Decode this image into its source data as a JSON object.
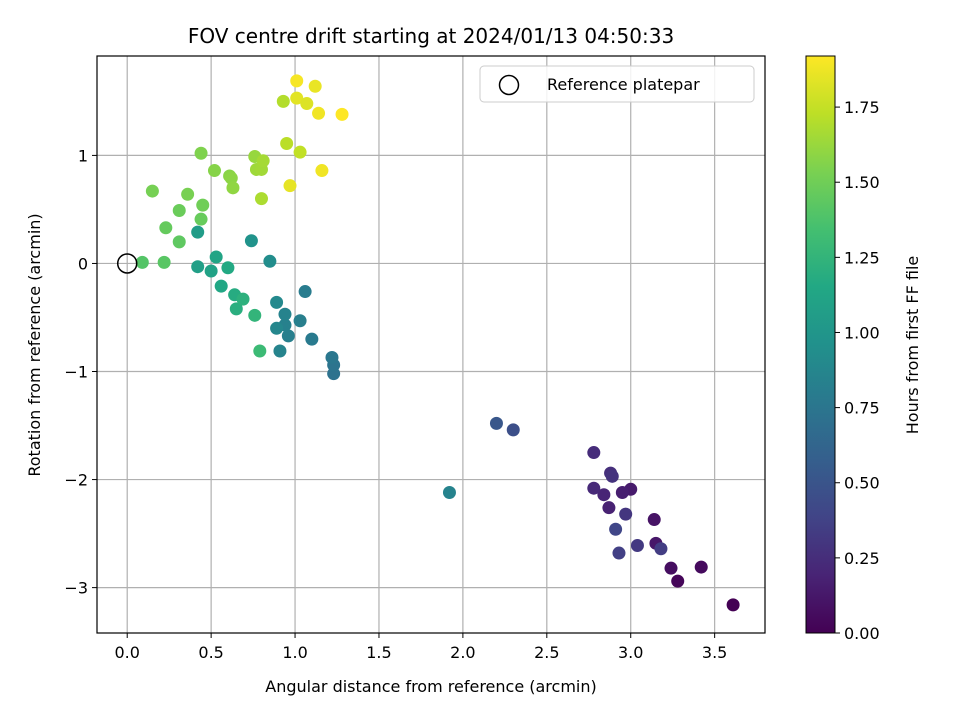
{
  "chart_data": {
    "type": "scatter",
    "title": "FOV centre drift starting at 2024/01/13 04:50:33",
    "xlabel": "Angular distance from reference (arcmin)",
    "ylabel": "Rotation from reference (arcmin)",
    "xlim": [
      -0.18,
      3.8
    ],
    "ylim": [
      -3.42,
      1.92
    ],
    "xticks": [
      "0.0",
      "0.5",
      "1.0",
      "1.5",
      "2.0",
      "2.5",
      "3.0",
      "3.5"
    ],
    "xtick_values": [
      0,
      0.5,
      1.0,
      1.5,
      2.0,
      2.5,
      3.0,
      3.5
    ],
    "yticks": [
      "−3",
      "−2",
      "−1",
      "0",
      "1"
    ],
    "ytick_values": [
      -3,
      -2,
      -1,
      0,
      1
    ],
    "grid": true,
    "legend": {
      "position": "top-right",
      "entries": [
        "Reference platepar"
      ]
    },
    "reference_point": {
      "x": 0.0,
      "y": 0.0,
      "marker": "open-circle"
    },
    "colorbar": {
      "label": "Hours from first FF file",
      "colormap": "viridis",
      "range": [
        0.0,
        1.92
      ],
      "ticks": [
        "0.00",
        "0.25",
        "0.50",
        "0.75",
        "1.00",
        "1.25",
        "1.50",
        "1.75"
      ],
      "tick_values": [
        0.0,
        0.25,
        0.5,
        0.75,
        1.0,
        1.25,
        1.5,
        1.75
      ]
    },
    "points": [
      {
        "x": 3.61,
        "y": -3.16,
        "hours": 0.0
      },
      {
        "x": 3.28,
        "y": -2.94,
        "hours": 0.03
      },
      {
        "x": 3.42,
        "y": -2.81,
        "hours": 0.05
      },
      {
        "x": 3.24,
        "y": -2.82,
        "hours": 0.07
      },
      {
        "x": 3.14,
        "y": -2.37,
        "hours": 0.1
      },
      {
        "x": 3.15,
        "y": -2.59,
        "hours": 0.12
      },
      {
        "x": 3.0,
        "y": -2.09,
        "hours": 0.14
      },
      {
        "x": 2.95,
        "y": -2.12,
        "hours": 0.16
      },
      {
        "x": 2.87,
        "y": -2.26,
        "hours": 0.18
      },
      {
        "x": 2.84,
        "y": -2.14,
        "hours": 0.2
      },
      {
        "x": 2.78,
        "y": -2.08,
        "hours": 0.22
      },
      {
        "x": 2.78,
        "y": -1.75,
        "hours": 0.24
      },
      {
        "x": 2.88,
        "y": -1.94,
        "hours": 0.26
      },
      {
        "x": 2.89,
        "y": -1.97,
        "hours": 0.28
      },
      {
        "x": 2.97,
        "y": -2.32,
        "hours": 0.3
      },
      {
        "x": 3.04,
        "y": -2.61,
        "hours": 0.32
      },
      {
        "x": 3.18,
        "y": -2.64,
        "hours": 0.34
      },
      {
        "x": 2.93,
        "y": -2.68,
        "hours": 0.36
      },
      {
        "x": 2.91,
        "y": -2.46,
        "hours": 0.4
      },
      {
        "x": 2.3,
        "y": -1.54,
        "hours": 0.46
      },
      {
        "x": 2.2,
        "y": -1.48,
        "hours": 0.52
      },
      {
        "x": 1.92,
        "y": -2.12,
        "hours": 0.85
      },
      {
        "x": 1.23,
        "y": -1.02,
        "hours": 0.72
      },
      {
        "x": 1.23,
        "y": -0.94,
        "hours": 0.74
      },
      {
        "x": 1.22,
        "y": -0.87,
        "hours": 0.76
      },
      {
        "x": 1.1,
        "y": -0.7,
        "hours": 0.78
      },
      {
        "x": 1.06,
        "y": -0.26,
        "hours": 0.8
      },
      {
        "x": 1.03,
        "y": -0.53,
        "hours": 0.82
      },
      {
        "x": 0.96,
        "y": -0.67,
        "hours": 0.82
      },
      {
        "x": 0.94,
        "y": -0.57,
        "hours": 0.84
      },
      {
        "x": 0.94,
        "y": -0.47,
        "hours": 0.85
      },
      {
        "x": 0.91,
        "y": -0.81,
        "hours": 0.86
      },
      {
        "x": 0.89,
        "y": -0.6,
        "hours": 0.88
      },
      {
        "x": 0.89,
        "y": -0.36,
        "hours": 0.9
      },
      {
        "x": 0.85,
        "y": 0.02,
        "hours": 0.93
      },
      {
        "x": 0.74,
        "y": 0.21,
        "hours": 0.98
      },
      {
        "x": 0.42,
        "y": 0.29,
        "hours": 1.05
      },
      {
        "x": 0.42,
        "y": -0.03,
        "hours": 1.08
      },
      {
        "x": 0.5,
        "y": -0.07,
        "hours": 1.1
      },
      {
        "x": 0.53,
        "y": 0.06,
        "hours": 1.12
      },
      {
        "x": 0.56,
        "y": -0.21,
        "hours": 1.14
      },
      {
        "x": 0.6,
        "y": -0.04,
        "hours": 1.16
      },
      {
        "x": 0.64,
        "y": -0.29,
        "hours": 1.18
      },
      {
        "x": 0.65,
        "y": -0.42,
        "hours": 1.2
      },
      {
        "x": 0.69,
        "y": -0.33,
        "hours": 1.22
      },
      {
        "x": 0.76,
        "y": -0.48,
        "hours": 1.25
      },
      {
        "x": 0.79,
        "y": -0.81,
        "hours": 1.3
      },
      {
        "x": 0.09,
        "y": 0.01,
        "hours": 1.4
      },
      {
        "x": 0.22,
        "y": 0.01,
        "hours": 1.42
      },
      {
        "x": 0.31,
        "y": 0.2,
        "hours": 1.44
      },
      {
        "x": 0.23,
        "y": 0.33,
        "hours": 1.46
      },
      {
        "x": 0.44,
        "y": 0.41,
        "hours": 1.47
      },
      {
        "x": 0.31,
        "y": 0.49,
        "hours": 1.48
      },
      {
        "x": 0.45,
        "y": 0.54,
        "hours": 1.5
      },
      {
        "x": 0.15,
        "y": 0.67,
        "hours": 1.52
      },
      {
        "x": 0.36,
        "y": 0.64,
        "hours": 1.53
      },
      {
        "x": 0.44,
        "y": 1.02,
        "hours": 1.55
      },
      {
        "x": 0.52,
        "y": 0.86,
        "hours": 1.57
      },
      {
        "x": 0.61,
        "y": 0.81,
        "hours": 1.58
      },
      {
        "x": 0.62,
        "y": 0.79,
        "hours": 1.59
      },
      {
        "x": 0.63,
        "y": 0.7,
        "hours": 1.6
      },
      {
        "x": 0.76,
        "y": 0.99,
        "hours": 1.62
      },
      {
        "x": 0.77,
        "y": 0.87,
        "hours": 1.64
      },
      {
        "x": 0.8,
        "y": 0.87,
        "hours": 1.65
      },
      {
        "x": 0.81,
        "y": 0.95,
        "hours": 1.66
      },
      {
        "x": 0.8,
        "y": 0.6,
        "hours": 1.68
      },
      {
        "x": 0.93,
        "y": 1.5,
        "hours": 1.7
      },
      {
        "x": 0.95,
        "y": 1.11,
        "hours": 1.72
      },
      {
        "x": 1.03,
        "y": 1.03,
        "hours": 1.74
      },
      {
        "x": 0.97,
        "y": 0.72,
        "hours": 1.85
      },
      {
        "x": 1.16,
        "y": 0.86,
        "hours": 1.88
      },
      {
        "x": 1.01,
        "y": 1.53,
        "hours": 1.84
      },
      {
        "x": 1.01,
        "y": 1.69,
        "hours": 1.9
      },
      {
        "x": 1.07,
        "y": 1.48,
        "hours": 1.82
      },
      {
        "x": 1.12,
        "y": 1.64,
        "hours": 1.86
      },
      {
        "x": 1.14,
        "y": 1.39,
        "hours": 1.88
      },
      {
        "x": 1.28,
        "y": 1.38,
        "hours": 1.92
      }
    ]
  }
}
